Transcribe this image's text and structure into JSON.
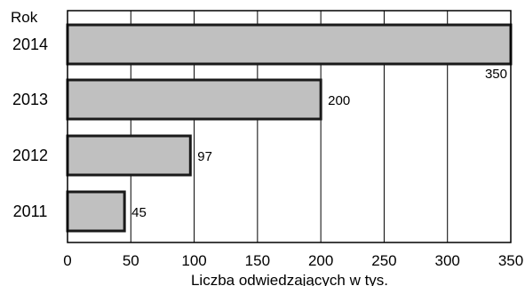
{
  "chart_data": {
    "type": "bar",
    "orientation": "horizontal",
    "title": "",
    "ylabel": "Rok",
    "xlabel": "Liczba odwiedzających w tys.",
    "categories": [
      "2014",
      "2013",
      "2012",
      "2011"
    ],
    "values": [
      350,
      200,
      97,
      45
    ],
    "data_labels": [
      "350",
      "200",
      "97",
      "45"
    ],
    "xlim": [
      0,
      350
    ],
    "xticks": [
      0,
      50,
      100,
      150,
      200,
      250,
      300,
      350
    ],
    "grid": "vertical",
    "legend": "none",
    "colors": {
      "bar_fill": "#c0c0c0",
      "bar_stroke": "#1a1a1a",
      "grid": "#000000"
    }
  }
}
